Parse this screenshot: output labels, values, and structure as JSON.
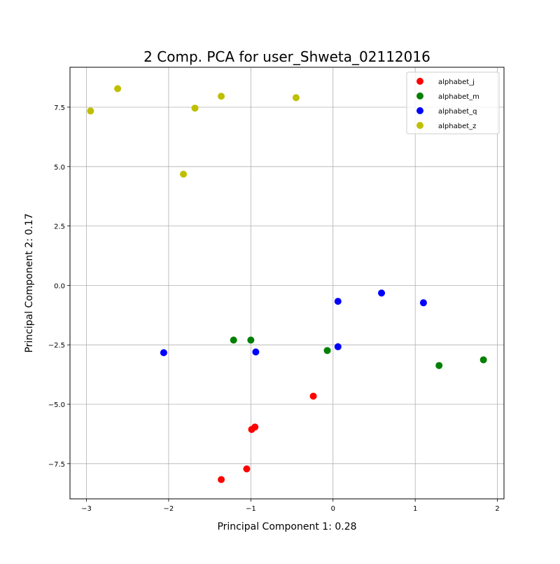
{
  "chart_data": {
    "type": "scatter",
    "title": "2 Comp. PCA for user_Shweta_02112016",
    "xlabel": "Principal Component 1: 0.28",
    "ylabel": "Principal Component 2: 0.17",
    "xlim": [
      -3.2,
      2.08
    ],
    "ylim": [
      -8.98,
      9.18
    ],
    "xticks": [
      -3,
      -2,
      -1,
      0,
      1,
      2
    ],
    "xtick_labels": [
      "−3",
      "−2",
      "−1",
      "0",
      "1",
      "2"
    ],
    "yticks": [
      -7.5,
      -5.0,
      -2.5,
      0.0,
      2.5,
      5.0,
      7.5
    ],
    "ytick_labels": [
      "−7.5",
      "−5.0",
      "−2.5",
      "0.0",
      "2.5",
      "5.0",
      "7.5"
    ],
    "grid": true,
    "legend_position": "top-right",
    "series": [
      {
        "name": "alphabet_j",
        "color": "#ff0000",
        "points": [
          [
            -0.24,
            -4.66
          ],
          [
            -0.95,
            -5.96
          ],
          [
            -0.99,
            -6.06
          ],
          [
            -1.05,
            -7.72
          ],
          [
            -1.36,
            -8.17
          ]
        ]
      },
      {
        "name": "alphabet_m",
        "color": "#008000",
        "points": [
          [
            -1.21,
            -2.3
          ],
          [
            -1.0,
            -2.3
          ],
          [
            -0.07,
            -2.74
          ],
          [
            1.29,
            -3.37
          ],
          [
            1.83,
            -3.13
          ]
        ]
      },
      {
        "name": "alphabet_q",
        "color": "#0000ff",
        "points": [
          [
            -2.06,
            -2.83
          ],
          [
            -0.94,
            -2.8
          ],
          [
            0.06,
            -2.58
          ],
          [
            0.06,
            -0.67
          ],
          [
            0.59,
            -0.32
          ],
          [
            1.1,
            -0.73
          ]
        ]
      },
      {
        "name": "alphabet_z",
        "color": "#bfbf00",
        "points": [
          [
            -2.95,
            7.34
          ],
          [
            -2.62,
            8.28
          ],
          [
            -1.68,
            7.46
          ],
          [
            -1.36,
            7.96
          ],
          [
            -0.45,
            7.9
          ],
          [
            -1.82,
            4.68
          ]
        ]
      }
    ]
  }
}
